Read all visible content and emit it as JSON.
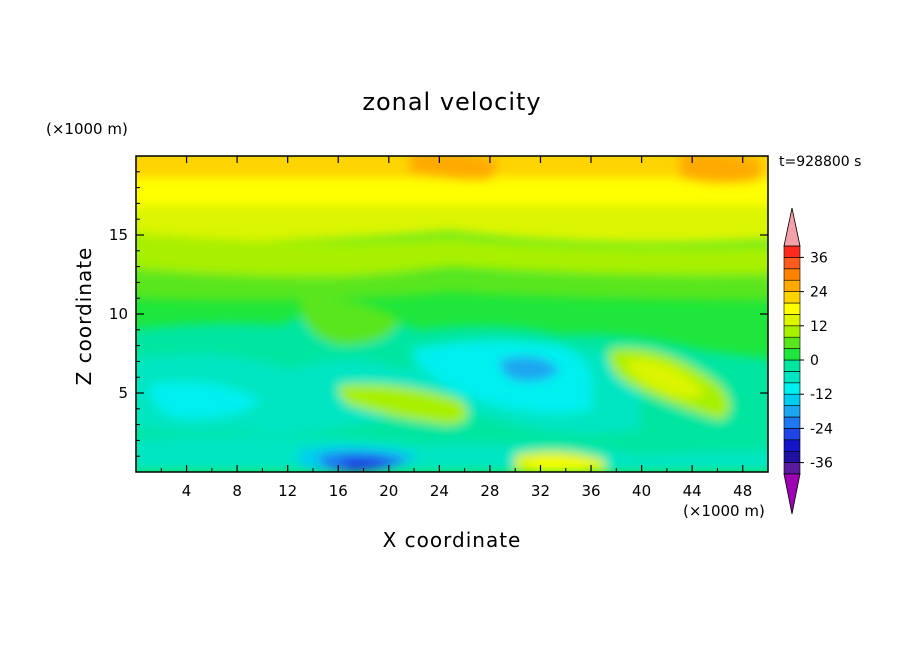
{
  "chart_data": {
    "type": "heatmap",
    "title": "zonal velocity",
    "xlabel": "X coordinate",
    "ylabel": "Z coordinate",
    "x_unit_label": "(×1000 m)",
    "y_unit_label": "(×1000 m)",
    "time_label": "t=928800 s",
    "xlim": [
      0,
      50
    ],
    "ylim": [
      0,
      20
    ],
    "x_ticks": [
      "4",
      "8",
      "12",
      "16",
      "20",
      "24",
      "28",
      "32",
      "36",
      "40",
      "44",
      "48"
    ],
    "y_ticks": [
      "5",
      "10",
      "15"
    ],
    "colorbar": {
      "tick_labels": [
        "36",
        "24",
        "12",
        "0",
        "-12",
        "-24",
        "-36"
      ],
      "levels": [
        -40,
        -36,
        -32,
        -28,
        -24,
        -20,
        -16,
        -12,
        -8,
        -4,
        0,
        4,
        8,
        12,
        16,
        20,
        24,
        28,
        32,
        36,
        40
      ],
      "colors": [
        "#5a1a9c",
        "#2010a0",
        "#1414c8",
        "#1f45e6",
        "#1e78ef",
        "#1aa6f0",
        "#00cdf0",
        "#00f0f0",
        "#00e6c2",
        "#00e6a0",
        "#1ee63c",
        "#5ae61e",
        "#a8f000",
        "#dcf500",
        "#ffff00",
        "#ffd400",
        "#ffaa00",
        "#ff8200",
        "#ff5a1e",
        "#ff2a1e"
      ],
      "under_color": "#a000b4",
      "over_color": "#f4a0a8"
    },
    "approx_field": [
      {
        "x": [
          0,
          50
        ],
        "z": [
          17,
          19.8
        ],
        "value": 18,
        "note": "warm yellow-orange layer at top"
      },
      {
        "x": [
          0,
          50
        ],
        "z": [
          12,
          17
        ],
        "value": 8
      },
      {
        "x": [
          0,
          50
        ],
        "z": [
          9,
          12
        ],
        "value": 2
      },
      {
        "x": [
          8,
          40
        ],
        "z": [
          1,
          9
        ],
        "value": -6
      },
      {
        "x": [
          28,
          38
        ],
        "z": [
          3,
          8
        ],
        "value": -14
      },
      {
        "x": [
          16,
          24
        ],
        "z": [
          0,
          1.5
        ],
        "value": -26
      },
      {
        "x": [
          30,
          36
        ],
        "z": [
          0,
          1
        ],
        "value": 14
      },
      {
        "x": [
          38,
          48
        ],
        "z": [
          4,
          8
        ],
        "value": 6
      }
    ]
  }
}
